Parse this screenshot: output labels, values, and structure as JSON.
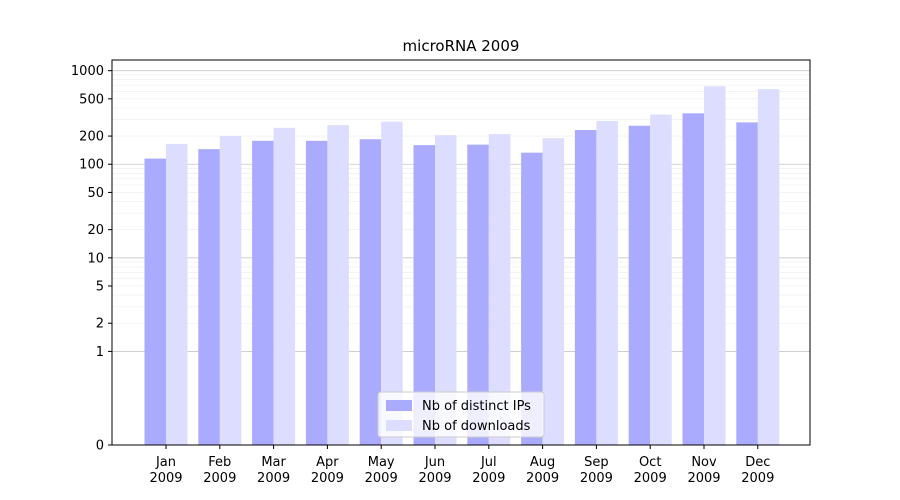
{
  "chart_data": {
    "type": "bar",
    "title": "microRNA 2009",
    "xlabel": "",
    "ylabel": "",
    "yscale": "symlog",
    "ylim": [
      0,
      1300
    ],
    "y_ticks": [
      0,
      1,
      2,
      5,
      10,
      20,
      50,
      100,
      200,
      500,
      1000
    ],
    "grid": "horizontal",
    "legend_position": "lower-center",
    "categories": [
      [
        "Jan",
        "2009"
      ],
      [
        "Feb",
        "2009"
      ],
      [
        "Mar",
        "2009"
      ],
      [
        "Apr",
        "2009"
      ],
      [
        "May",
        "2009"
      ],
      [
        "Jun",
        "2009"
      ],
      [
        "Jul",
        "2009"
      ],
      [
        "Aug",
        "2009"
      ],
      [
        "Sep",
        "2009"
      ],
      [
        "Oct",
        "2009"
      ],
      [
        "Nov",
        "2009"
      ],
      [
        "Dec",
        "2009"
      ]
    ],
    "series": [
      {
        "name": "Nb of distinct IPs",
        "color": "#aaaaff",
        "values": [
          115,
          145,
          178,
          178,
          185,
          160,
          162,
          133,
          232,
          258,
          350,
          280
        ]
      },
      {
        "name": "Nb of downloads",
        "color": "#ddddff",
        "values": [
          165,
          200,
          245,
          262,
          285,
          205,
          210,
          190,
          290,
          340,
          680,
          635
        ]
      }
    ]
  }
}
